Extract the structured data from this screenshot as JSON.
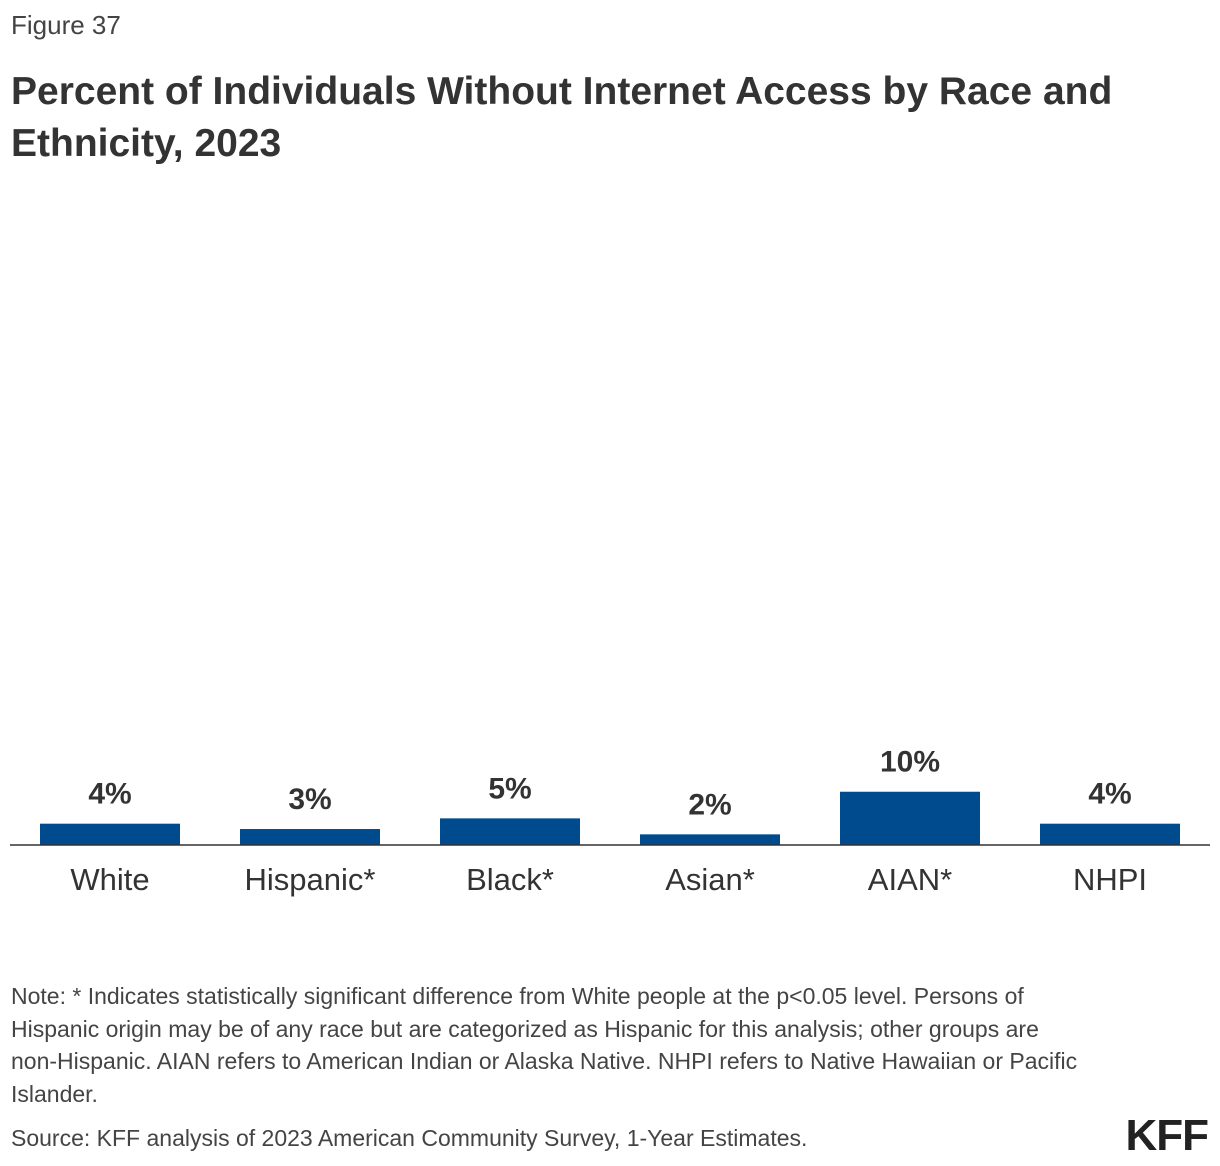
{
  "figure_label": "Figure 37",
  "title": "Percent of Individuals Without Internet Access by Race and Ethnicity, 2023",
  "note": "Note: * Indicates statistically significant difference from White people at the p<0.05 level. Persons of Hispanic origin may be of any race but are categorized as Hispanic for this analysis; other groups are non-Hispanic. AIAN refers to American Indian or Alaska Native. NHPI refers to Native Hawaiian or Pacific Islander.",
  "source": "Source: KFF analysis of 2023 American Community Survey, 1-Year Estimates.",
  "logo": "KFF",
  "colors": {
    "bar": "#004b8d",
    "axis": "#333333"
  },
  "chart_data": {
    "type": "bar",
    "title": "Percent of Individuals Without Internet Access by Race and Ethnicity, 2023",
    "categories": [
      "White",
      "Hispanic*",
      "Black*",
      "Asian*",
      "AIAN*",
      "NHPI"
    ],
    "values": [
      4,
      3,
      5,
      2,
      10,
      4
    ],
    "data_labels": [
      "4%",
      "3%",
      "5%",
      "2%",
      "10%",
      "4%"
    ],
    "ylim": [
      0,
      46
    ],
    "grid": false,
    "legend": "none"
  }
}
